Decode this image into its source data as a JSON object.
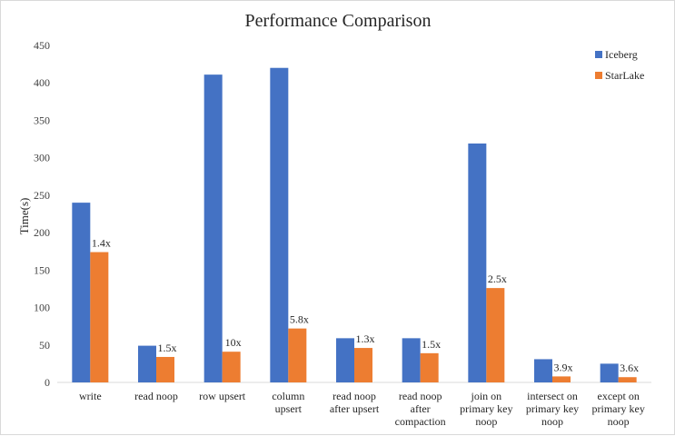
{
  "chart_data": {
    "type": "bar",
    "title": "Performance Comparison",
    "xlabel": "",
    "ylabel": "Time(s)",
    "ylim": [
      0,
      450
    ],
    "yticks": [
      0,
      50,
      100,
      150,
      200,
      250,
      300,
      350,
      400,
      450
    ],
    "grid": false,
    "legend_position": "top-right",
    "categories": [
      [
        "write"
      ],
      [
        "read noop"
      ],
      [
        "row upsert"
      ],
      [
        "column",
        "upsert"
      ],
      [
        "read noop",
        "after upsert"
      ],
      [
        "read noop",
        "after",
        "compaction"
      ],
      [
        "join on",
        "primary key",
        "noop"
      ],
      [
        "intersect on",
        "primary key",
        "noop"
      ],
      [
        "except on",
        "primary key",
        "noop"
      ]
    ],
    "series": [
      {
        "name": "Iceberg",
        "color": "#4472C4",
        "values": [
          240,
          49,
          411,
          420,
          59,
          59,
          319,
          31,
          25
        ]
      },
      {
        "name": "StarLake",
        "color": "#ED7D31",
        "values": [
          174,
          34,
          41,
          72,
          46,
          39,
          126,
          8,
          7
        ]
      }
    ],
    "annotations": [
      "1.4x",
      "1.5x",
      "10x",
      "5.8x",
      "1.3x",
      "1.5x",
      "2.5x",
      "3.9x",
      "3.6x"
    ]
  }
}
